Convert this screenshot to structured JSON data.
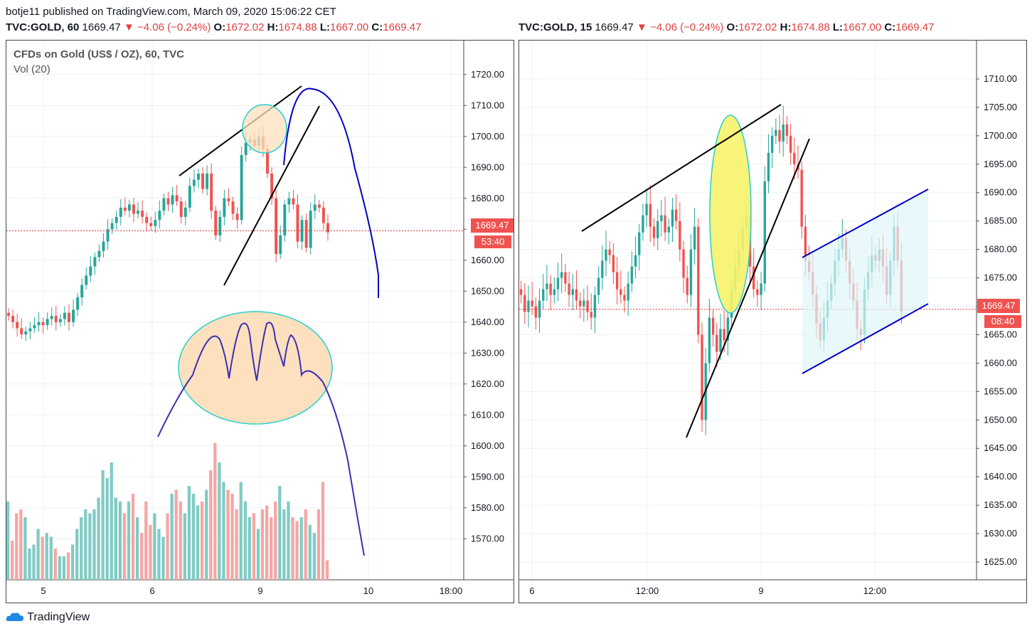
{
  "header": {
    "publisher_line": "botje11 published on TradingView.com, March 09, 2020 15:06:22 CET"
  },
  "left_chart": {
    "symbol": "TVC:GOLD, 60",
    "price": "1669.47",
    "change": "▼ −4.06 (−0.24%)",
    "o_label": "O:",
    "o_value": "1672.02",
    "h_label": "H:",
    "h_value": "1674.88",
    "l_label": "L:",
    "l_value": "1667.00",
    "c_label": "C:",
    "c_value": "1669.47",
    "legend_title": "CFDs on Gold (US$ / OZ), 60, TVC",
    "legend_vol": "Vol (20)",
    "price_tag": "1669.47",
    "time_tag": "53:40"
  },
  "right_chart": {
    "symbol": "TVC:GOLD, 15",
    "price": "1669.47",
    "change": "▼ −4.06 (−0.24%)",
    "o_label": "O:",
    "o_value": "1672.02",
    "h_label": "H:",
    "h_value": "1674.88",
    "l_label": "L:",
    "l_value": "1667.00",
    "c_label": "C:",
    "c_value": "1669.47",
    "price_tag": "1669.47",
    "time_tag": "08:40"
  },
  "branding": {
    "logo_text": "TradingView"
  },
  "colors": {
    "up": "#26a69a",
    "down": "#ef5350",
    "up_vol": "#80cbc4",
    "down_vol": "#f5a6a4",
    "black_line": "#000000",
    "blue_line": "#0000c8",
    "orange_fill": "#fde0bd",
    "yellow_fill": "#f6f36a",
    "channel_fill": "#e0f7fa",
    "circle_stroke": "#26d0ce"
  },
  "chart_data": [
    {
      "type": "candlestick",
      "title": "CFDs on Gold (US$ / OZ), 60, TVC",
      "ylim": [
        1565,
        1725
      ],
      "yticks": [
        "1720.00",
        "1710.00",
        "1700.00",
        "1690.00",
        "1680.00",
        "1670.00",
        "1660.00",
        "1650.00",
        "1640.00",
        "1630.00",
        "1620.00",
        "1610.00",
        "1600.00",
        "1590.00",
        "1580.00",
        "1570.00"
      ],
      "yticks_values": [
        1720,
        1710,
        1700,
        1690,
        1680,
        1670,
        1660,
        1650,
        1640,
        1630,
        1620,
        1610,
        1600,
        1590,
        1580,
        1570
      ],
      "xticks": [
        "5",
        "6",
        "9",
        "10",
        "18:00"
      ],
      "last_price": 1669.47,
      "close_series": [
        1642,
        1640,
        1638,
        1636,
        1637,
        1638,
        1639,
        1640,
        1639,
        1641,
        1642,
        1640,
        1641,
        1643,
        1640,
        1644,
        1648,
        1652,
        1655,
        1658,
        1661,
        1663,
        1666,
        1670,
        1672,
        1674,
        1677,
        1676,
        1678,
        1675,
        1676,
        1674,
        1672,
        1671,
        1673,
        1676,
        1680,
        1678,
        1681,
        1679,
        1674,
        1677,
        1684,
        1686,
        1688,
        1683,
        1688,
        1676,
        1668,
        1674,
        1680,
        1679,
        1675,
        1673,
        1694,
        1698,
        1699,
        1697,
        1700,
        1696,
        1688,
        1680,
        1662,
        1668,
        1678,
        1680,
        1678,
        1666,
        1673,
        1664,
        1676,
        1678,
        1677,
        1672,
        1669
      ],
      "volume": [
        20,
        10,
        17,
        18,
        16,
        8,
        9,
        13,
        11,
        12,
        11,
        8,
        6,
        6,
        7,
        9,
        13,
        16,
        18,
        17,
        18,
        21,
        28,
        26,
        30,
        21,
        20,
        17,
        20,
        22,
        16,
        12,
        20,
        14,
        17,
        13,
        11,
        17,
        22,
        23,
        20,
        17,
        24,
        22,
        19,
        20,
        23,
        28,
        35,
        30,
        25,
        23,
        22,
        18,
        25,
        20,
        16,
        17,
        13,
        18,
        19,
        16,
        20,
        24,
        18,
        20,
        16,
        15,
        16,
        18,
        14,
        12,
        18,
        25,
        5
      ]
    },
    {
      "type": "candlestick",
      "ylim": [
        1623,
        1713
      ],
      "yticks": [
        "1710.00",
        "1705.00",
        "1700.00",
        "1695.00",
        "1690.00",
        "1685.00",
        "1680.00",
        "1675.00",
        "1670.00",
        "1665.00",
        "1660.00",
        "1655.00",
        "1650.00",
        "1645.00",
        "1640.00",
        "1635.00",
        "1630.00",
        "1625.00"
      ],
      "yticks_values": [
        1710,
        1705,
        1700,
        1695,
        1690,
        1685,
        1680,
        1675,
        1670,
        1665,
        1660,
        1655,
        1650,
        1645,
        1640,
        1635,
        1630,
        1625
      ],
      "xticks": [
        "6",
        "12:00",
        "9",
        "12:00"
      ],
      "last_price": 1669.47,
      "close_series": [
        1672,
        1669,
        1671,
        1670,
        1668,
        1671,
        1673,
        1674,
        1672,
        1673,
        1675,
        1676,
        1674,
        1672,
        1673,
        1671,
        1670,
        1671,
        1669,
        1668,
        1672,
        1675,
        1678,
        1680,
        1679,
        1676,
        1673,
        1672,
        1671,
        1674,
        1677,
        1679,
        1683,
        1686,
        1688,
        1684,
        1682,
        1685,
        1686,
        1683,
        1684,
        1687,
        1685,
        1680,
        1675,
        1672,
        1680,
        1684,
        1665,
        1650,
        1660,
        1668,
        1665,
        1662,
        1666,
        1664,
        1668,
        1673,
        1677,
        1680,
        1684,
        1686,
        1677,
        1673,
        1672,
        1674,
        1692,
        1697,
        1700,
        1701,
        1699,
        1702,
        1700,
        1697,
        1695,
        1694,
        1684,
        1678,
        1676,
        1672,
        1667,
        1664,
        1668,
        1671,
        1674,
        1678,
        1680,
        1682,
        1678,
        1674,
        1671,
        1666,
        1665,
        1673,
        1676,
        1679,
        1678,
        1680,
        1677,
        1672,
        1678,
        1684,
        1678,
        1669
      ]
    }
  ]
}
